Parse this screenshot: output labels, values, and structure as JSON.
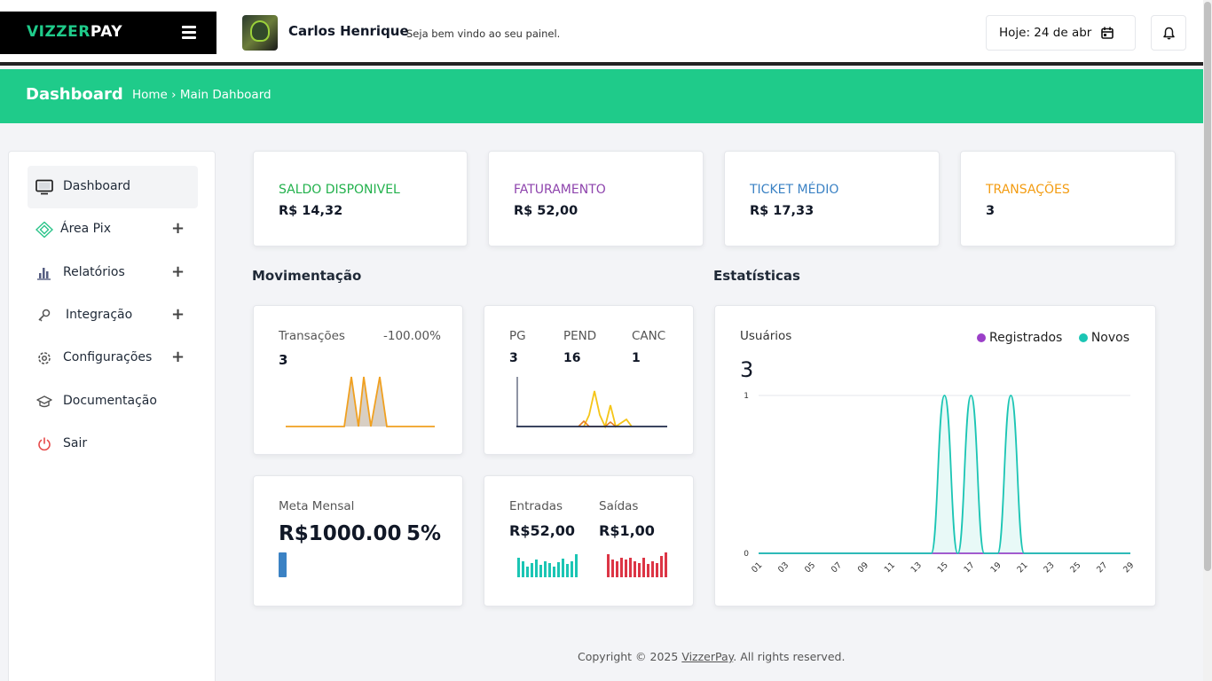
{
  "brand": {
    "part1": "VIZZER",
    "part2": "PAY"
  },
  "header": {
    "user_name": "Carlos Henrique",
    "welcome": "Seja bem vindo ao seu painel.",
    "date_label": "Hoje: 24 de abr"
  },
  "page": {
    "title": "Dashboard",
    "breadcrumb": "Home › Main Dahboard"
  },
  "sidebar": {
    "items": [
      {
        "label": "Dashboard",
        "icon": "monitor-icon",
        "expand": ""
      },
      {
        "label": "Área Pix",
        "icon": "pix-icon",
        "expand": "+"
      },
      {
        "label": "Relatórios",
        "icon": "bar-chart-icon",
        "expand": "+"
      },
      {
        "label": "Integração",
        "icon": "key-icon",
        "expand": "+"
      },
      {
        "label": "Configurações",
        "icon": "gear-icon",
        "expand": "+"
      },
      {
        "label": "Documentação",
        "icon": "graduation-cap-icon",
        "expand": ""
      },
      {
        "label": "Sair",
        "icon": "power-icon",
        "expand": ""
      }
    ]
  },
  "stats": [
    {
      "title": "SALDO DISPONIVEL",
      "value": "R$ 14,32",
      "color": "#22b14c"
    },
    {
      "title": "FATURAMENTO",
      "value": "R$ 52,00",
      "color": "#8e44ad"
    },
    {
      "title": "TICKET MÉDIO",
      "value": "R$ 17,33",
      "color": "#3b82c4"
    },
    {
      "title": "TRANSAÇÕES",
      "value": "3",
      "color": "#f39c12"
    }
  ],
  "movimentacao": {
    "heading": "Movimentação",
    "transacoes": {
      "label": "Transações",
      "change": "-100.00%",
      "value": "3"
    },
    "status": {
      "pg_label": "PG",
      "pg_value": "3",
      "pend_label": "PEND",
      "pend_value": "16",
      "canc_label": "CANC",
      "canc_value": "1"
    },
    "meta": {
      "label": "Meta Mensal",
      "value": "R$1000.00",
      "percent": "5%",
      "progress": 0.05
    },
    "fluxo": {
      "entradas_label": "Entradas",
      "entradas_value": "R$52,00",
      "saidas_label": "Saídas",
      "saidas_value": "R$1,00"
    }
  },
  "estatisticas": {
    "heading": "Estatísticas",
    "usuarios_label": "Usuários",
    "usuarios_value": "3"
  },
  "chart_data": {
    "type": "area",
    "title": "Usuários",
    "series": [
      {
        "name": "Registrados",
        "color": "#9b3fc8",
        "values": [
          0,
          0,
          0,
          0,
          0,
          0,
          0,
          0,
          0,
          0,
          0,
          0,
          0,
          0,
          0,
          0,
          0,
          0,
          0,
          0,
          0,
          0,
          0,
          0,
          0,
          0,
          0,
          0,
          0
        ]
      },
      {
        "name": "Novos",
        "color": "#1bc5b4",
        "values": [
          0,
          0,
          0,
          0,
          0,
          0,
          0,
          0,
          0,
          0,
          0,
          0,
          0,
          0,
          1,
          0,
          1,
          0,
          0,
          1,
          0,
          0,
          0,
          0,
          0,
          0,
          0,
          0,
          0
        ]
      }
    ],
    "x": [
      "01",
      "02",
      "03",
      "04",
      "05",
      "06",
      "07",
      "08",
      "09",
      "10",
      "11",
      "12",
      "13",
      "14",
      "15",
      "16",
      "17",
      "18",
      "19",
      "20",
      "21",
      "22",
      "23",
      "24",
      "25",
      "26",
      "27",
      "28",
      "29"
    ],
    "xtick_labels": [
      "01",
      "03",
      "05",
      "07",
      "09",
      "11",
      "13",
      "15",
      "17",
      "19",
      "21",
      "23",
      "25",
      "27",
      "29"
    ],
    "ytick_labels": [
      "0",
      "1"
    ],
    "ylim": [
      0,
      1
    ],
    "legend": "top-right"
  },
  "footer": {
    "prefix": "Copyright © 2025 ",
    "brand": "VizzerPay",
    "suffix": ". All rights reserved."
  }
}
